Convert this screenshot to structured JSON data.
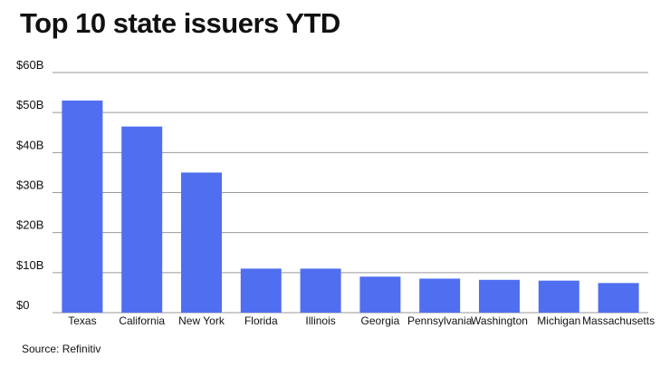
{
  "chart_data": {
    "type": "bar",
    "title": "Top 10 state issuers YTD",
    "xlabel": "",
    "ylabel": "",
    "categories": [
      "Texas",
      "California",
      "New York",
      "Florida",
      "Illinois",
      "Georgia",
      "Pennsylvania",
      "Washington",
      "Michigan",
      "Massachusetts"
    ],
    "values": [
      53,
      46.5,
      35,
      11,
      11,
      9,
      8.5,
      8.2,
      8,
      7.4
    ],
    "value_unit": "$B",
    "ylim": [
      0,
      60
    ],
    "yticks": [
      0,
      10,
      20,
      30,
      40,
      50,
      60
    ],
    "ytick_labels": [
      "$0",
      "$10B",
      "$20B",
      "$30B",
      "$40B",
      "$50B",
      "$60B"
    ],
    "grid": true,
    "legend": "none",
    "bar_color": "#4f6ff0",
    "grid_color": "#9a9a9a"
  },
  "source": "Source: Refinitiv"
}
